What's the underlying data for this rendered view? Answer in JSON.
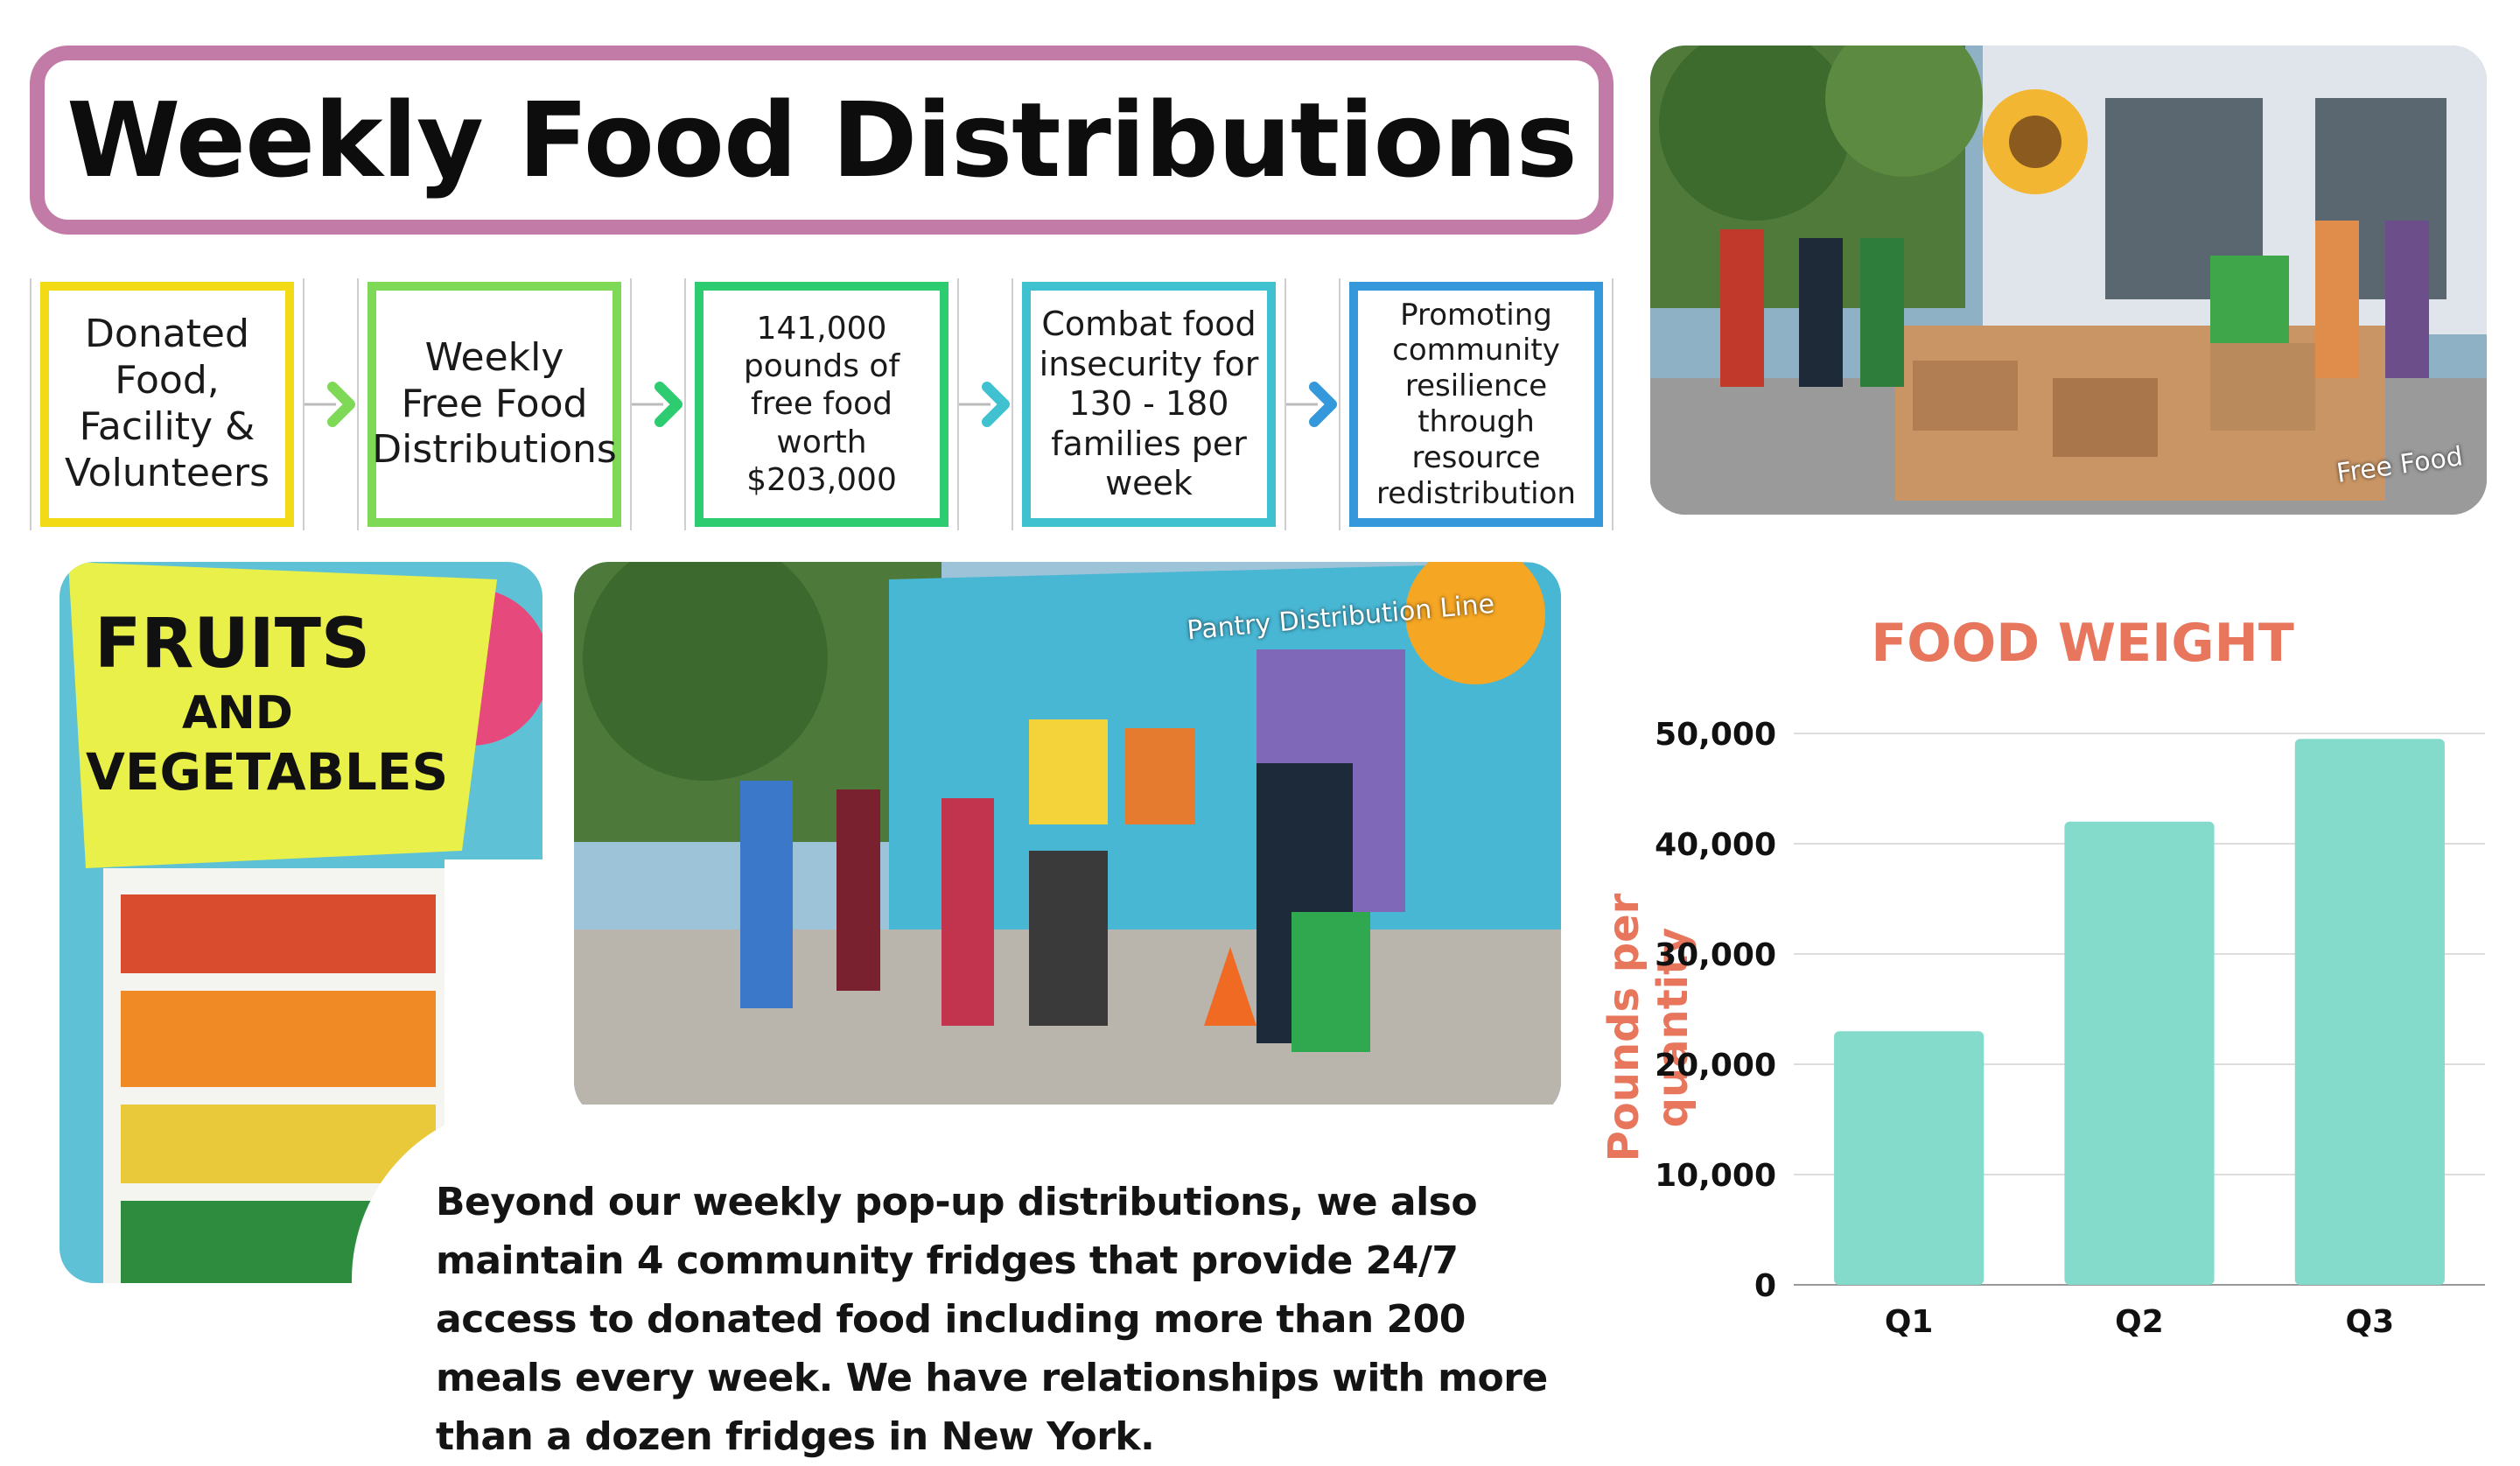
{
  "title": "Weekly Food Distributions",
  "flow": [
    {
      "text": "Donated\nFood,\nFacility &\nVolunteers",
      "color": "#f3da17"
    },
    {
      "text": "Weekly\nFree Food\nDistributions",
      "color": "#7ed957"
    },
    {
      "text": "141,000\npounds of\nfree food\nworth\n$203,000",
      "color": "#2ecc71"
    },
    {
      "text": "Combat food\ninsecurity for\n130 - 180\nfamilies per\nweek",
      "color": "#3fc1d0"
    },
    {
      "text": "Promoting\ncommunity\nresilience\nthrough\nresource\nredistribution",
      "color": "#3498db"
    }
  ],
  "photos": {
    "volunteers_caption": "Free Food",
    "line_caption": "Pantry Distribution Line",
    "fridge_sign_line1": "FRUITS",
    "fridge_sign_line2": "AND",
    "fridge_sign_line3": "VEGETABLES"
  },
  "blurb": "Beyond our weekly pop-up distributions, we also maintain 4 community fridges that provide 24/7 access to donated food including more than 200 meals every week. We have relationships with more than a dozen fridges in New York.",
  "chart_data": {
    "type": "bar",
    "title": "FOOD WEIGHT",
    "ylabel": "Pounds per quantity",
    "xlabel": "",
    "categories": [
      "Q1",
      "Q2",
      "Q3"
    ],
    "values": [
      23000,
      42000,
      49500
    ],
    "ylim": [
      0,
      50000
    ],
    "yticks": [
      0,
      10000,
      20000,
      30000,
      40000,
      50000
    ],
    "ytick_labels": [
      "0",
      "10,000",
      "20,000",
      "30,000",
      "40,000",
      "50,000"
    ],
    "grid": true,
    "bar_color": "#84dbcb",
    "title_color": "#e7765d"
  }
}
